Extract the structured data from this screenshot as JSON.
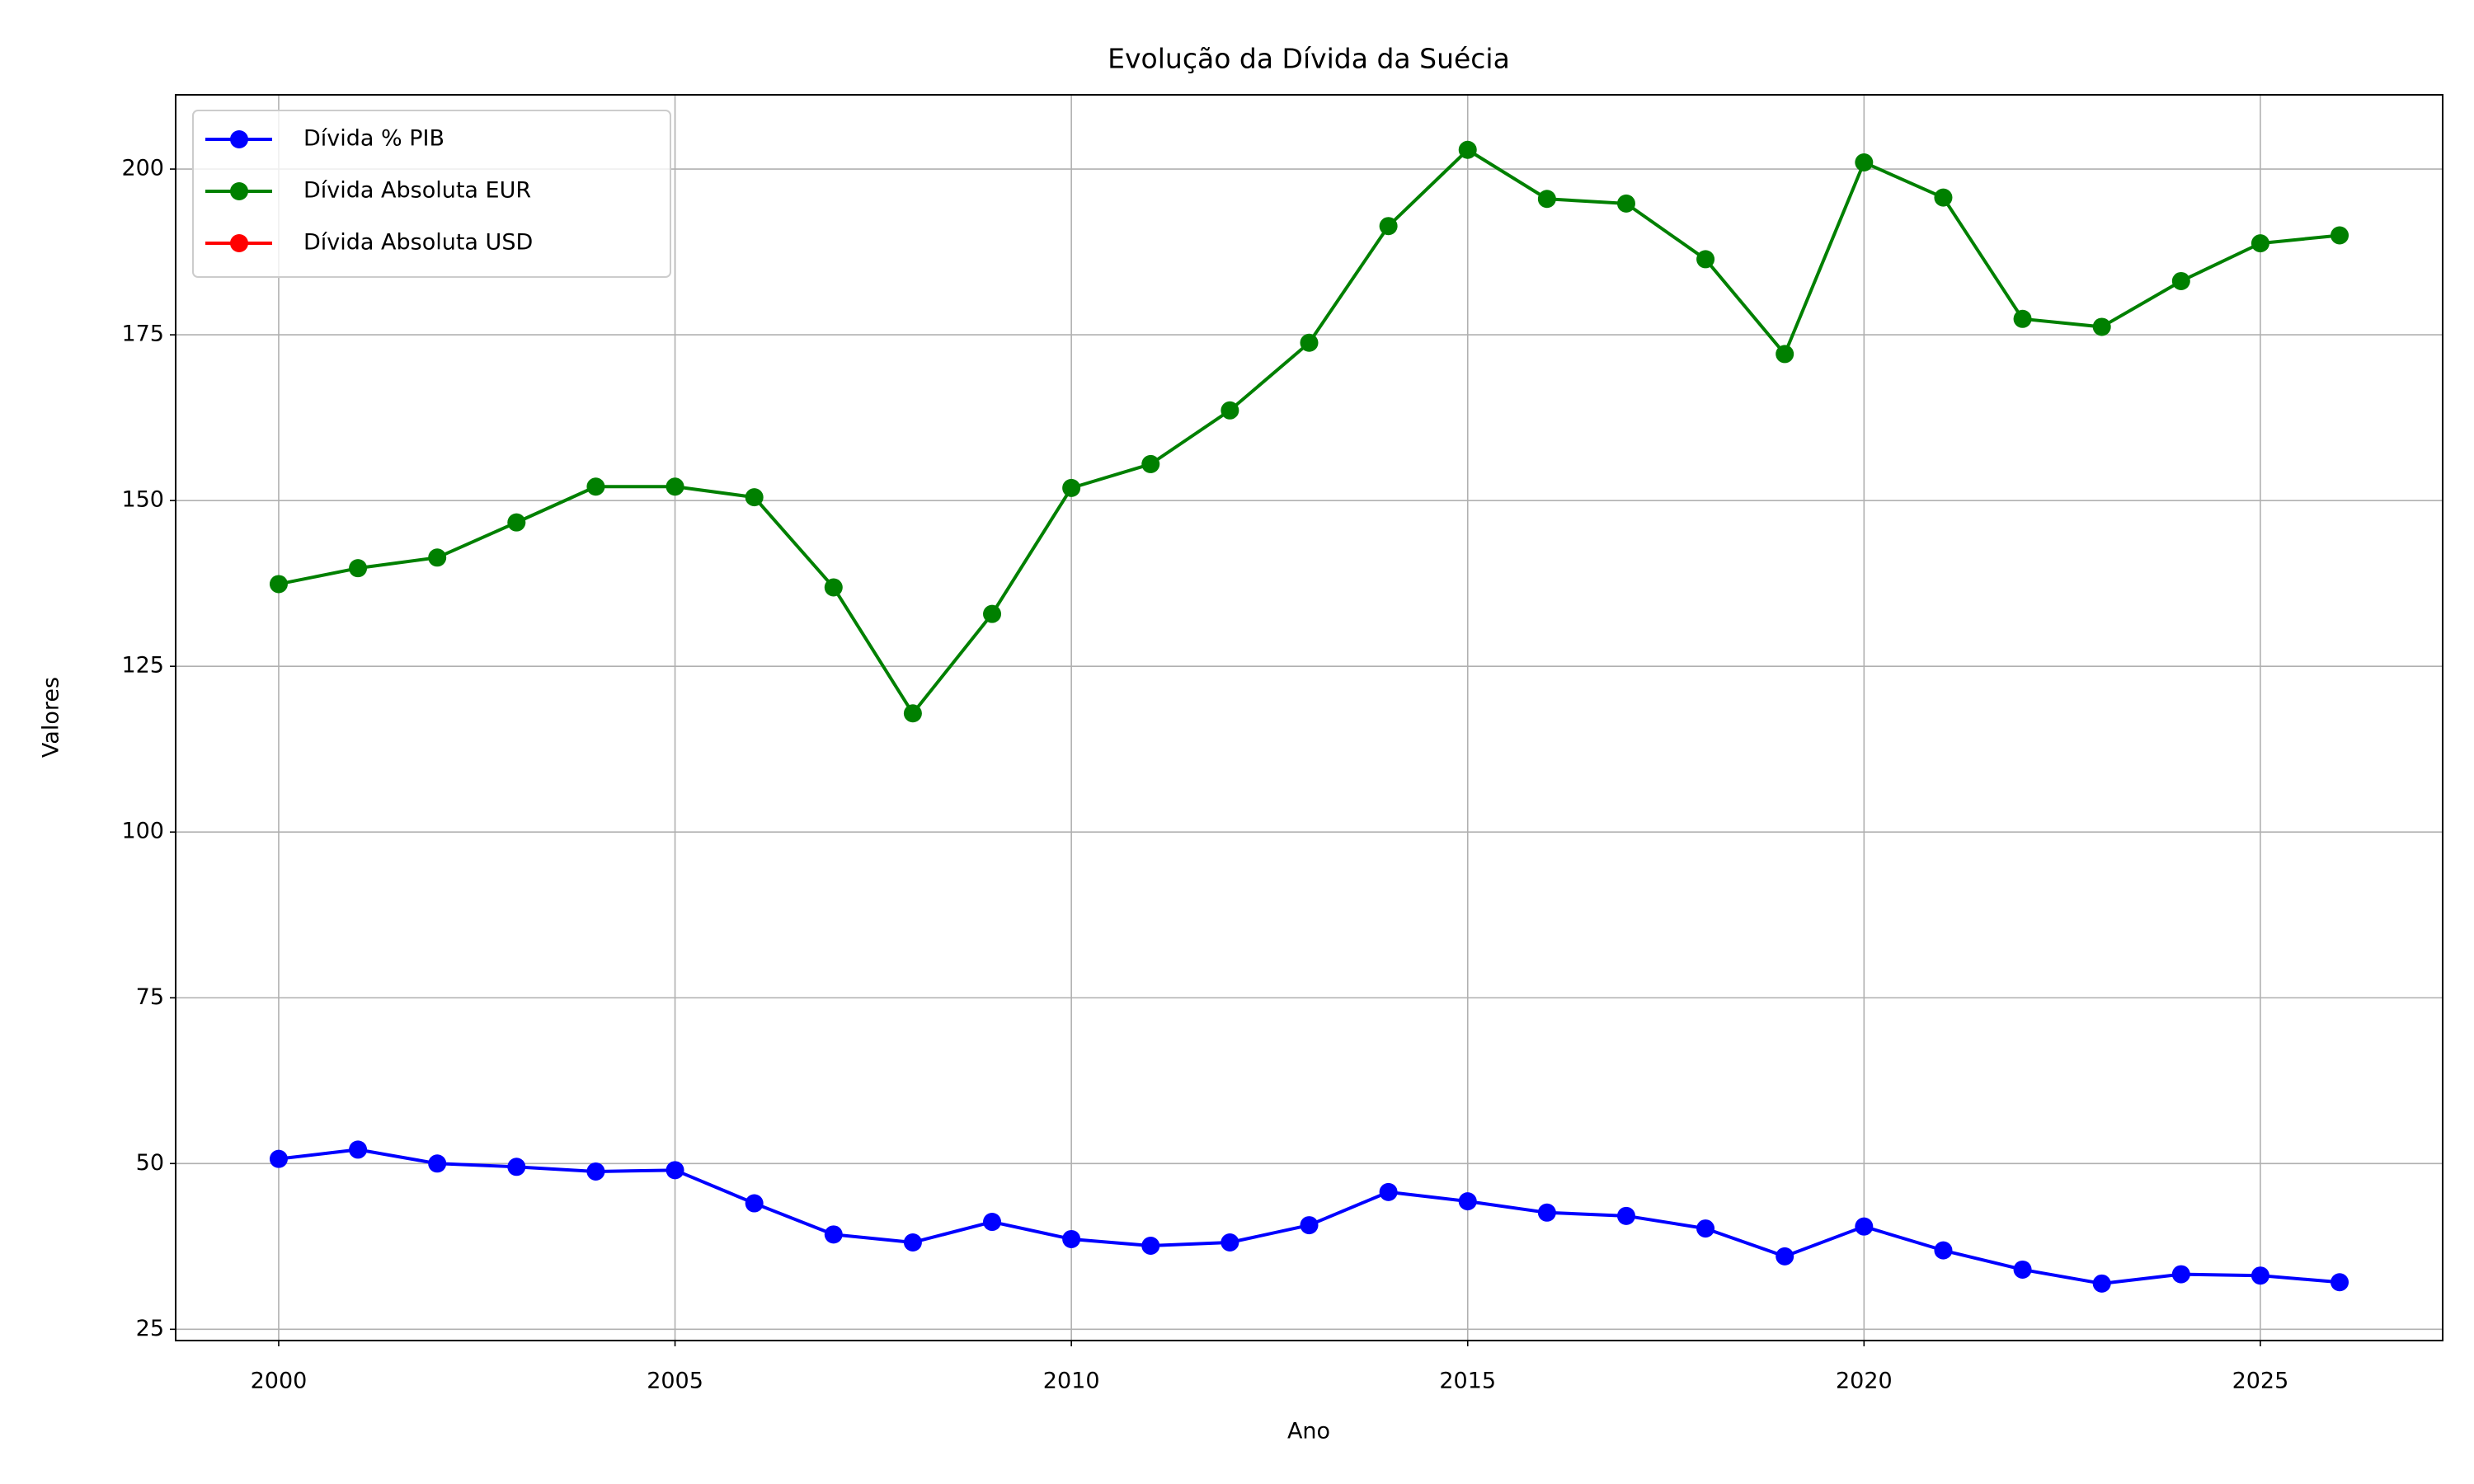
{
  "chart_data": {
    "type": "line",
    "title": "Evolução da Dívida da Suécia",
    "x_label": "Ano",
    "y_label": "Valores",
    "x": [
      2000,
      2001,
      2002,
      2003,
      2004,
      2005,
      2006,
      2007,
      2008,
      2009,
      2010,
      2011,
      2012,
      2013,
      2014,
      2015,
      2016,
      2017,
      2018,
      2019,
      2020,
      2021,
      2022,
      2023,
      2024,
      2025,
      2026
    ],
    "series": [
      {
        "name": "Dívida % PIB",
        "color": "#0000ff",
        "values": [
          50.7,
          52.1,
          50.0,
          49.5,
          48.8,
          49.0,
          44.0,
          39.3,
          38.1,
          41.2,
          38.6,
          37.6,
          38.1,
          40.7,
          45.7,
          44.3,
          42.6,
          42.1,
          40.2,
          36.0,
          40.5,
          36.9,
          34.0,
          31.9,
          33.3,
          33.1,
          32.1
        ]
      },
      {
        "name": "Dívida Absoluta EUR",
        "color": "#008000",
        "values": [
          137.4,
          139.8,
          141.4,
          146.7,
          152.1,
          152.1,
          150.5,
          136.9,
          117.9,
          132.9,
          151.9,
          155.5,
          163.6,
          173.8,
          191.4,
          202.9,
          195.5,
          194.8,
          186.4,
          172.1,
          201.0,
          195.7,
          177.4,
          176.2,
          183.1,
          188.8,
          190.0
        ]
      },
      {
        "name": "Dívida Absoluta USD",
        "color": "#ff0000",
        "values": [
          null,
          null,
          null,
          null,
          null,
          null,
          null,
          null,
          null,
          null,
          null,
          null,
          null,
          null,
          null,
          null,
          null,
          null,
          null,
          null,
          null,
          null,
          null,
          null,
          null,
          null,
          null
        ]
      }
    ],
    "xlim": [
      1998.7,
      2027.3
    ],
    "xticks": [
      2000,
      2005,
      2010,
      2015,
      2020,
      2025
    ],
    "ylim": [
      23.3,
      211.2
    ],
    "yticks": [
      25,
      50,
      75,
      100,
      125,
      150,
      175,
      200
    ],
    "grid": true,
    "legend": "upper left"
  }
}
